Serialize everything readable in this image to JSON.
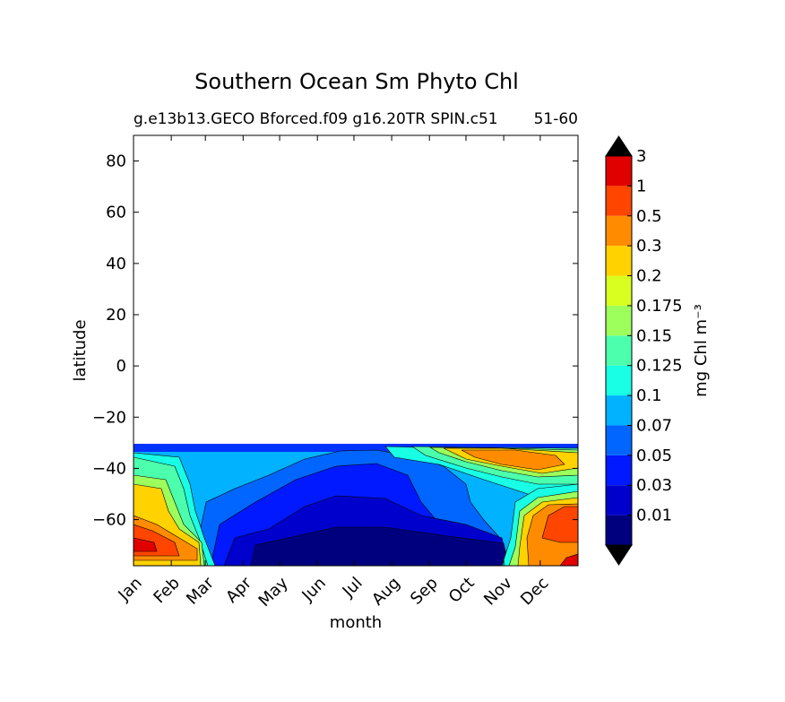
{
  "chart_data": {
    "type": "contourf",
    "title": "Southern Ocean Sm Phyto Chl",
    "subtitle_left": "g.e13b13.GECO Bforced.f09 g16.20TR SPIN.c51",
    "subtitle_right": "51-60",
    "xlabel": "month",
    "ylabel": "latitude",
    "x_categories": [
      "Jan",
      "Feb",
      "Mar",
      "Apr",
      "May",
      "Jun",
      "Jul",
      "Aug",
      "Sep",
      "Oct",
      "Nov",
      "Dec"
    ],
    "ylim": [
      -78,
      90
    ],
    "y_ticks": [
      80,
      60,
      40,
      20,
      0,
      -20,
      -40,
      -60
    ],
    "y_tick_labels": [
      "80",
      "60",
      "40",
      "20",
      "0",
      "−20",
      "−40",
      "−60"
    ],
    "data_lat_range": [
      -78,
      -32
    ],
    "colorbar": {
      "label": "mg Chl m⁻³",
      "levels": [
        "0.01",
        "0.03",
        "0.05",
        "0.07",
        "0.1",
        "0.125",
        "0.15",
        "0.175",
        "0.2",
        "0.3",
        "0.5",
        "1",
        "3"
      ],
      "colors": [
        "#00007f",
        "#0000cc",
        "#0019ff",
        "#0066ff",
        "#00b2ff",
        "#19ffe5",
        "#4cffad",
        "#9cff5c",
        "#d8ff1f",
        "#ffd200",
        "#ff8c00",
        "#ff4500",
        "#e00000",
        "#800000"
      ],
      "extend": "both"
    }
  }
}
